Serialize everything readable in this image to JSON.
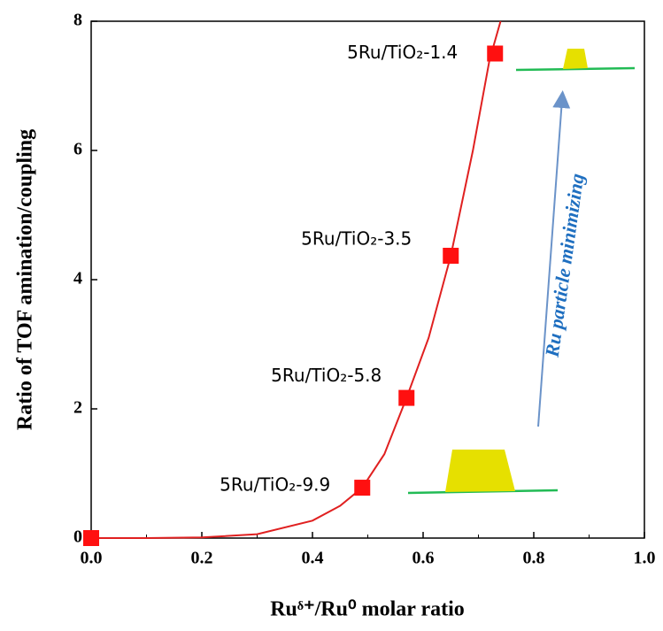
{
  "chart_data": {
    "type": "scatter",
    "xlabel": "Ruᵟ⁺/Ru⁰ molar ratio",
    "ylabel": "Ratio of TOF amination/coupling",
    "xlim": [
      0,
      1
    ],
    "ylim": [
      0,
      8
    ],
    "xticks": [
      {
        "value": 0,
        "label": "0.0"
      },
      0.2,
      0.4,
      0.6,
      0.8,
      {
        "value": 1,
        "label": "1.0"
      }
    ],
    "yticks": [
      0,
      2,
      4,
      6,
      8
    ],
    "series": [
      {
        "x": [
          0.0,
          0.49,
          0.57,
          0.65,
          0.73
        ],
        "values": [
          0.0,
          0.78,
          2.17,
          4.37,
          7.5
        ],
        "color": "#ff1010",
        "point_labels": [
          null,
          "5Ru/TiO₂-9.9",
          "5Ru/TiO₂-5.8",
          "5Ru/TiO₂-3.5",
          "5Ru/TiO₂-1.4"
        ]
      },
      {
        "x": [
          0,
          0.1,
          0.2,
          0.3,
          0.4,
          0.45,
          0.49,
          0.53,
          0.57,
          0.61,
          0.65,
          0.69,
          0.72,
          0.74
        ],
        "values": [
          0,
          0,
          0.01,
          0.06,
          0.27,
          0.5,
          0.78,
          1.3,
          2.17,
          3.1,
          4.37,
          6.0,
          7.4,
          8.0
        ],
        "color": "#e02020"
      }
    ],
    "annotation": "Ru particle minimizing"
  }
}
